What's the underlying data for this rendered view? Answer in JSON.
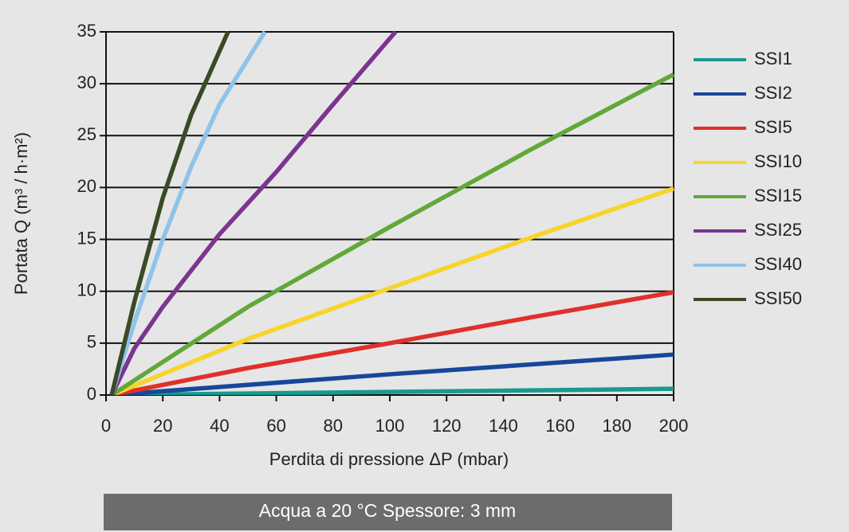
{
  "chart_data": {
    "type": "line",
    "xlabel": "Perdita di pressione ΔP (mbar)",
    "ylabel": "Portata Q (m³ / h·m²)",
    "caption": "Acqua a 20 °C   Spessore: 3 mm",
    "xlim": [
      0,
      200
    ],
    "xticks": [
      0,
      20,
      40,
      60,
      80,
      100,
      120,
      140,
      160,
      180,
      200
    ],
    "ylim": [
      0,
      35
    ],
    "yticks": [
      0,
      5,
      10,
      15,
      20,
      25,
      30,
      35
    ],
    "grid": true,
    "legend": "right",
    "series": [
      {
        "name": "SSI1",
        "color": "#1a9a8e",
        "x": [
          2,
          100,
          200
        ],
        "values": [
          0,
          0.3,
          0.6
        ]
      },
      {
        "name": "SSI2",
        "color": "#17479b",
        "x": [
          2,
          100,
          200
        ],
        "values": [
          0,
          2.0,
          3.9
        ]
      },
      {
        "name": "SSI5",
        "color": "#e0302a",
        "x": [
          2,
          50,
          100,
          150,
          200
        ],
        "values": [
          0,
          2.6,
          5.0,
          7.5,
          9.9
        ]
      },
      {
        "name": "SSI10",
        "color": "#f7d42a",
        "x": [
          2,
          50,
          100,
          150,
          200
        ],
        "values": [
          0,
          5.4,
          10.3,
          15.2,
          19.9
        ]
      },
      {
        "name": "SSI15",
        "color": "#62a838",
        "x": [
          2,
          50,
          100,
          150,
          200
        ],
        "values": [
          0,
          8.5,
          16.2,
          23.7,
          30.9
        ]
      },
      {
        "name": "SSI25",
        "color": "#7b3590",
        "x": [
          2,
          10,
          20,
          40,
          60,
          80,
          102
        ],
        "values": [
          0,
          4.5,
          8.5,
          15.5,
          21.5,
          28,
          35
        ]
      },
      {
        "name": "SSI40",
        "color": "#8fc3ea",
        "x": [
          2,
          10,
          20,
          30,
          40,
          56
        ],
        "values": [
          0,
          7,
          15,
          22,
          28,
          35
        ]
      },
      {
        "name": "SSI50",
        "color": "#3b4a26",
        "x": [
          2,
          10,
          20,
          30,
          43
        ],
        "values": [
          0,
          9,
          19,
          27,
          35
        ]
      }
    ]
  }
}
